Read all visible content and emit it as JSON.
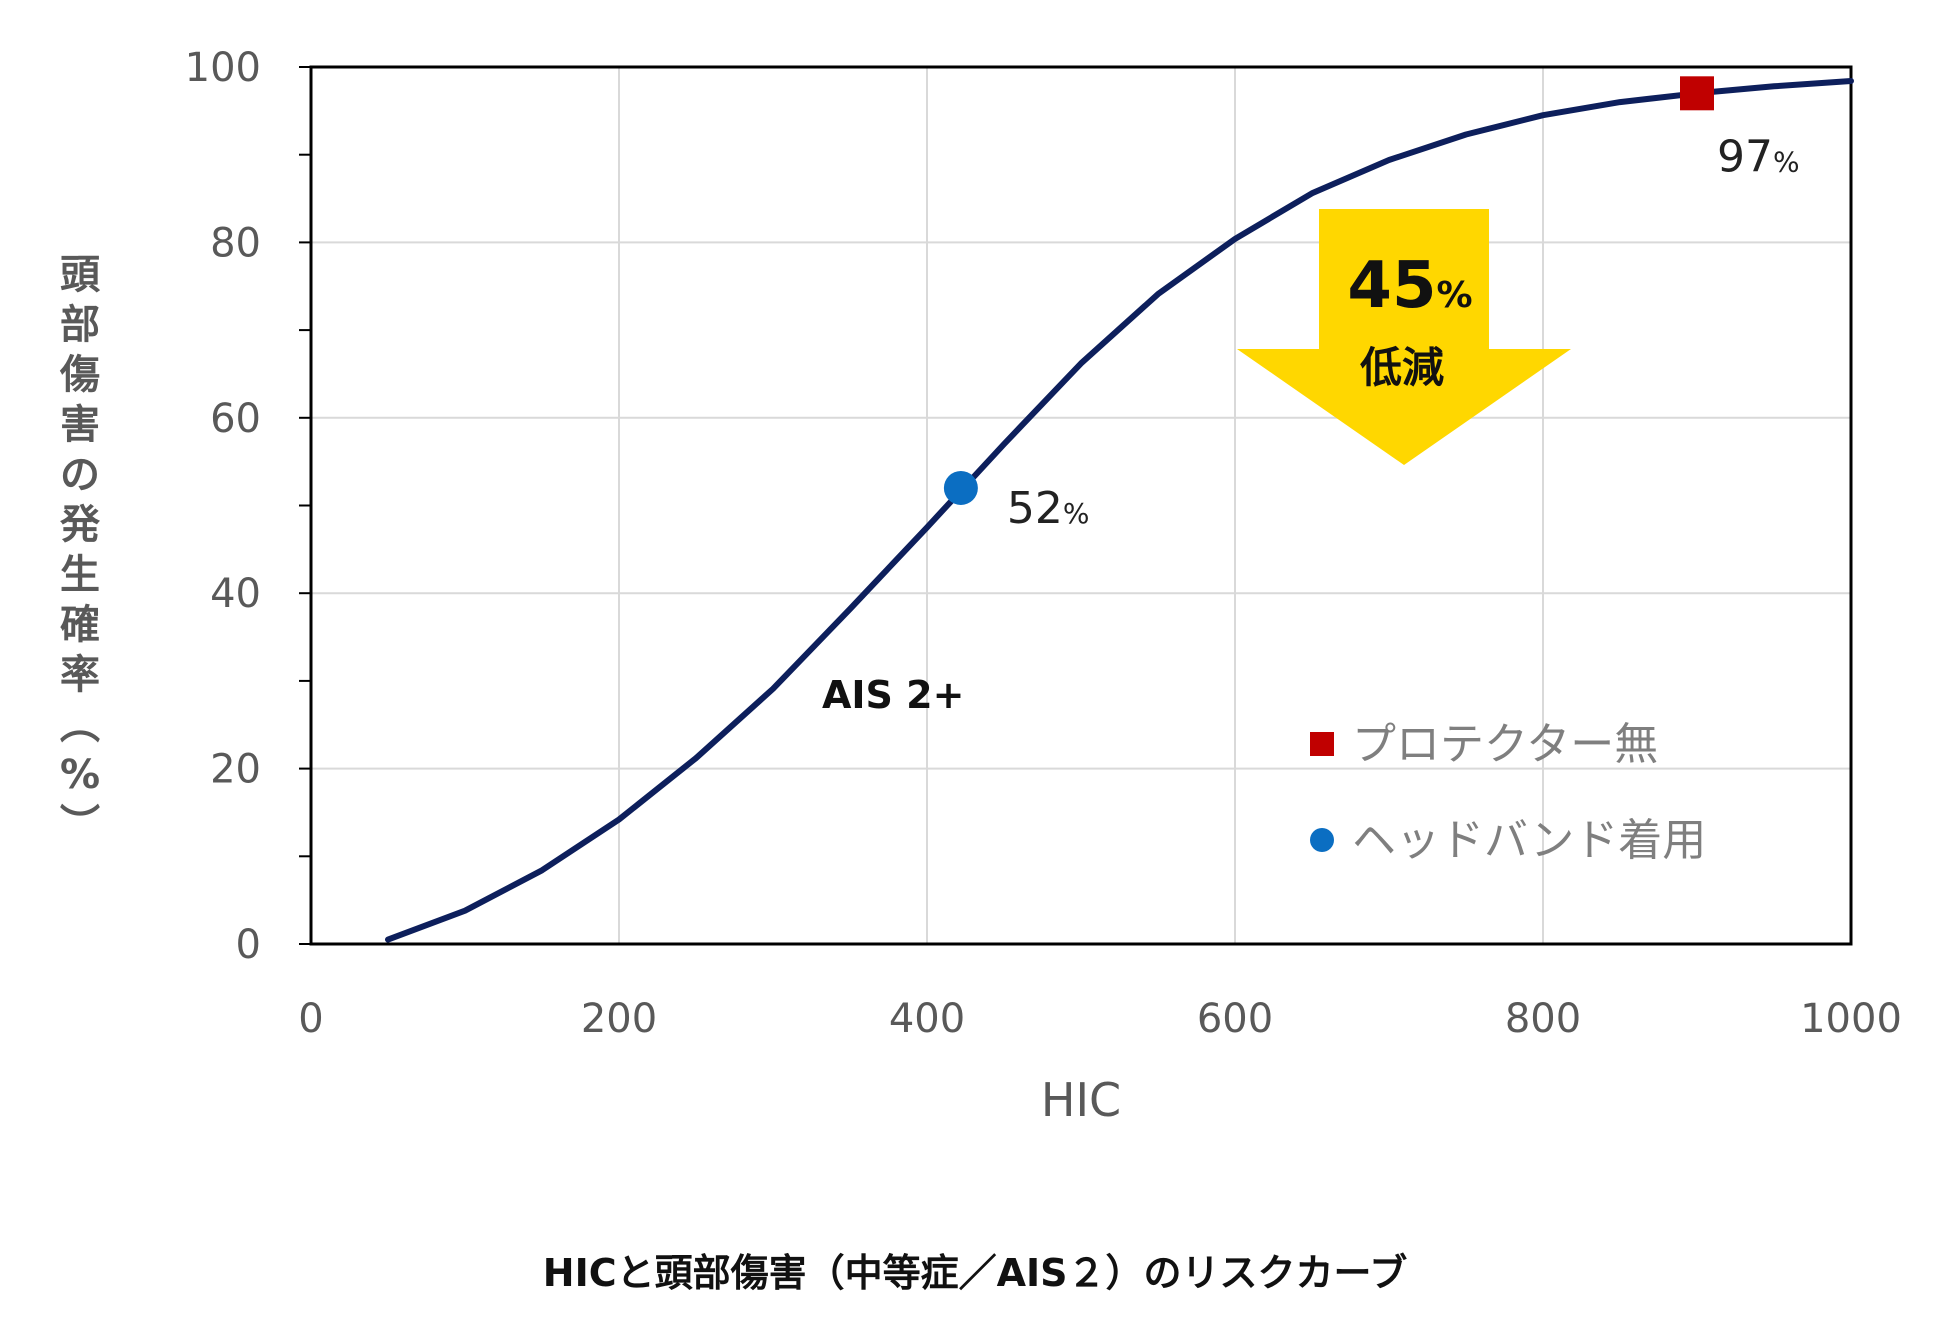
{
  "chart_data": {
    "type": "line",
    "xlabel": "HIC",
    "ylabel": "頭部傷害の発生確率（%）",
    "xlim": [
      0,
      1000
    ],
    "ylim": [
      0,
      100
    ],
    "x_ticks": [
      "0",
      "200",
      "400",
      "600",
      "800",
      "1000"
    ],
    "y_ticks": [
      "0",
      "20",
      "40",
      "60",
      "80",
      "100"
    ],
    "grid": true,
    "series": [
      {
        "name": "AIS 2+",
        "color": "#0d1f5c",
        "x": [
          50,
          100,
          150,
          200,
          250,
          300,
          350,
          400,
          450,
          500,
          550,
          600,
          650,
          700,
          750,
          800,
          850,
          900,
          950,
          1000
        ],
        "y": [
          0.5,
          3.8,
          8.4,
          14.2,
          21.2,
          29.1,
          38.2,
          47.5,
          57.0,
          66.2,
          74.1,
          80.4,
          85.6,
          89.4,
          92.3,
          94.5,
          96.0,
          97.0,
          97.8,
          98.4
        ]
      }
    ],
    "points": [
      {
        "name": "ヘッドバンド着用",
        "x": 422,
        "y": 52,
        "label_value": "52",
        "label_unit": "%",
        "marker": "circle",
        "color": "#0b6ec2"
      },
      {
        "name": "プロテクター無",
        "x": 900,
        "y": 97,
        "label_value": "97",
        "label_unit": "%",
        "marker": "square",
        "color": "#c00000"
      }
    ],
    "curve_label": "AIS 2+",
    "annotation": {
      "value": "45",
      "unit": "%",
      "text": "低減",
      "color": "#ffd700"
    },
    "legend": {
      "placement": "bottom-right",
      "entries": [
        {
          "label": "プロテクター無",
          "marker": "square",
          "color": "#c00000"
        },
        {
          "label": "ヘッドバンド着用",
          "marker": "circle",
          "color": "#0b6ec2"
        }
      ]
    },
    "caption": "HICと頭部傷害（中等症／AIS２）のリスクカーブ"
  }
}
